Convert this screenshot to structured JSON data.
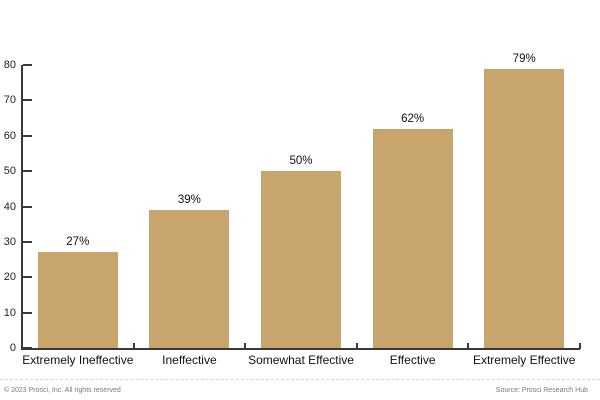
{
  "chart_data": {
    "type": "bar",
    "title": "",
    "xlabel": "",
    "ylabel": "",
    "categories": [
      "Extremely Ineffective",
      "Ineffective",
      "Somewhat Effective",
      "Effective",
      "Extremely Effective"
    ],
    "values": [
      27,
      39,
      50,
      62,
      79
    ],
    "value_labels": [
      "27%",
      "39%",
      "50%",
      "62%",
      "79%"
    ],
    "ylim": [
      0,
      80
    ],
    "yticks": [
      0,
      10,
      20,
      30,
      40,
      50,
      60,
      70,
      80
    ],
    "grid": false,
    "legend": "none",
    "bar_color": "#C8A56C",
    "axis_color": "#3a3a3a",
    "label_color": "#111111"
  },
  "footer": {
    "copyright": "© 2023 Prosci, Inc. All rights reserved",
    "source": "Source: Prosci Research Hub"
  }
}
